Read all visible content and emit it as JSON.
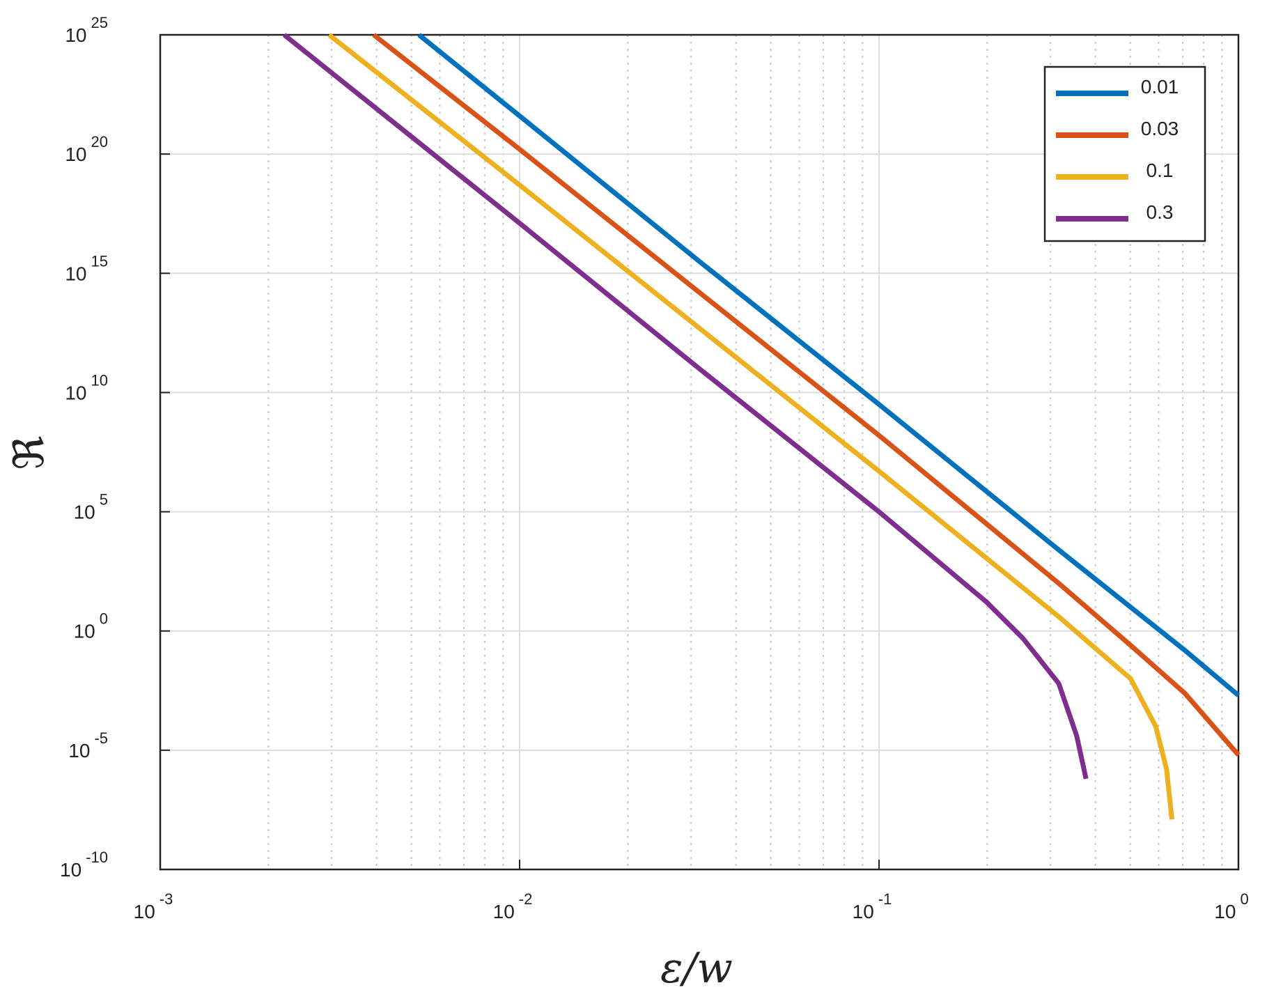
{
  "chart_data": {
    "type": "line",
    "x_label": "ε/w",
    "y_label": "ℜ",
    "log_x": true,
    "log_y": true,
    "grid": true,
    "minor_grid_x": true,
    "legend": "upper right",
    "xlim": [
      0.001,
      1
    ],
    "ylim": [
      1e-10,
      1e+25
    ],
    "xticks": [
      {
        "value": 0.001,
        "label": "10",
        "sup": "-3"
      },
      {
        "value": 0.01,
        "label": "10",
        "sup": "-2"
      },
      {
        "value": 0.1,
        "label": "10",
        "sup": "-1"
      },
      {
        "value": 1,
        "label": "10",
        "sup": "0"
      }
    ],
    "yticks": [
      {
        "value": 1e-10,
        "label": "10",
        "sup": "-10"
      },
      {
        "value": 1e-05,
        "label": "10",
        "sup": "-5"
      },
      {
        "value": 1,
        "label": "10",
        "sup": "0"
      },
      {
        "value": 100000.0,
        "label": "10",
        "sup": "5"
      },
      {
        "value": 10000000000.0,
        "label": "10",
        "sup": "10"
      },
      {
        "value": 1000000000000000.0,
        "label": "10",
        "sup": "15"
      },
      {
        "value": 1e+20,
        "label": "10",
        "sup": "20"
      },
      {
        "value": 1e+25,
        "label": "10",
        "sup": "25"
      }
    ],
    "series": [
      {
        "name": "0.01",
        "color": "#0072bd",
        "x": [
          0.005248,
          0.01,
          0.03162,
          0.1,
          0.3162,
          0.5012,
          0.7079,
          1
        ],
        "values": [
          1e+25,
          3.981e+21,
          3162000000000000.0,
          3162000000.0,
          2512,
          10,
          0.1585,
          0.001995
        ]
      },
      {
        "name": "0.03",
        "color": "#d95319",
        "x": [
          0.003926,
          0.01,
          0.03162,
          0.1,
          0.3162,
          0.5012,
          0.7079,
          1
        ],
        "values": [
          1e+25,
          1.585e+20,
          158500000000000.0,
          158500000.0,
          100,
          0.2512,
          0.002512,
          6.31e-06
        ]
      },
      {
        "name": "0.1",
        "color": "#edb120",
        "x": [
          0.002951,
          0.01,
          0.03162,
          0.1,
          0.3162,
          0.5012,
          0.5888,
          0.631,
          0.6531
        ],
        "values": [
          1e+25,
          5.012e+18,
          5012000000000.0,
          5012000.0,
          3.981,
          0.01,
          0.0001,
          1.585e-06,
          1.259e-08
        ]
      },
      {
        "name": "0.3",
        "color": "#7e2f8e",
        "x": [
          0.002213,
          0.01,
          0.03162,
          0.1,
          0.1995,
          0.2512,
          0.3162,
          0.3548,
          0.3767
        ],
        "values": [
          1e+25,
          1.259e+17,
          100000000000.0,
          100000.0,
          15.85,
          0.5012,
          0.00631,
          3.981e-05,
          6.31e-07
        ]
      }
    ]
  }
}
